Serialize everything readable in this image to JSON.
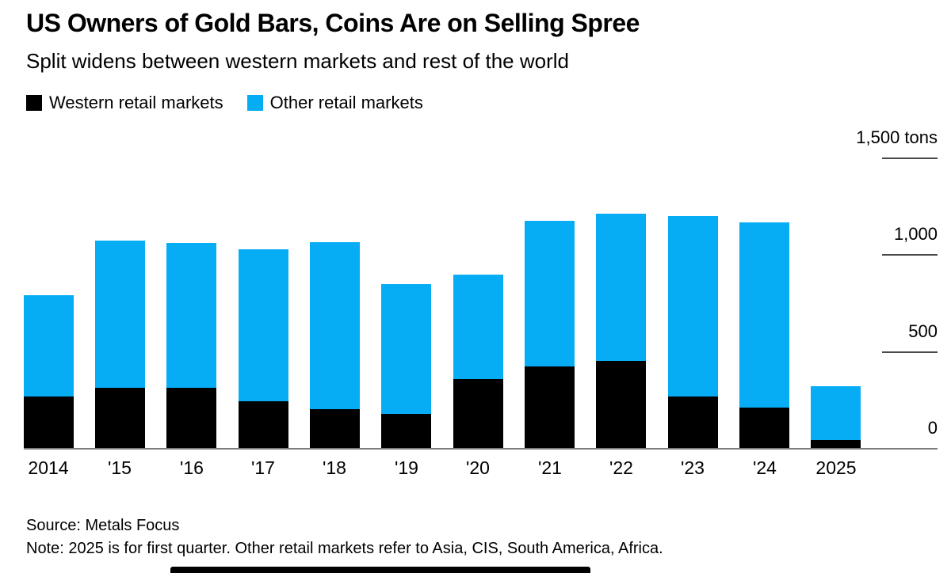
{
  "header": {
    "title": "US Owners of Gold Bars, Coins Are on Selling Spree",
    "subtitle": "Split widens between western markets and rest of the world"
  },
  "legend": [
    {
      "label": "Western retail markets",
      "color": "#000000"
    },
    {
      "label": "Other retail markets",
      "color": "#06adf4"
    }
  ],
  "chart_data": {
    "type": "bar",
    "stacked": true,
    "title": "US Owners of Gold Bars, Coins Are on Selling Spree",
    "subtitle": "Split widens between western markets and rest of the world",
    "unit": "tons",
    "categories": [
      "2014",
      "'15",
      "'16",
      "'17",
      "'18",
      "'19",
      "'20",
      "'21",
      "'22",
      "'23",
      "'24",
      "2025"
    ],
    "series": [
      {
        "name": "Western retail markets",
        "color": "#000000",
        "values": [
          265,
          310,
          310,
          240,
          200,
          175,
          355,
          420,
          450,
          265,
          210,
          40
        ]
      },
      {
        "name": "Other retail markets",
        "color": "#06adf4",
        "values": [
          525,
          760,
          750,
          785,
          865,
          670,
          540,
          755,
          760,
          935,
          955,
          280
        ]
      }
    ],
    "totals": [
      790,
      1070,
      1060,
      1025,
      1065,
      845,
      895,
      1175,
      1210,
      1200,
      1165,
      320
    ],
    "ylim": [
      0,
      1500
    ],
    "y_axis": {
      "side": "right",
      "ticks": [
        0,
        500,
        1000,
        1500
      ],
      "tick_labels": [
        "0",
        "500",
        "1,000",
        "1,500 tons"
      ]
    },
    "grid": "right-side short ticks only",
    "legend_position": "top-left"
  },
  "footer": {
    "source": "Source: Metals Focus",
    "note": "Note: 2025 is for first quarter. Other retail markets refer to Asia, CIS, South America, Africa."
  }
}
